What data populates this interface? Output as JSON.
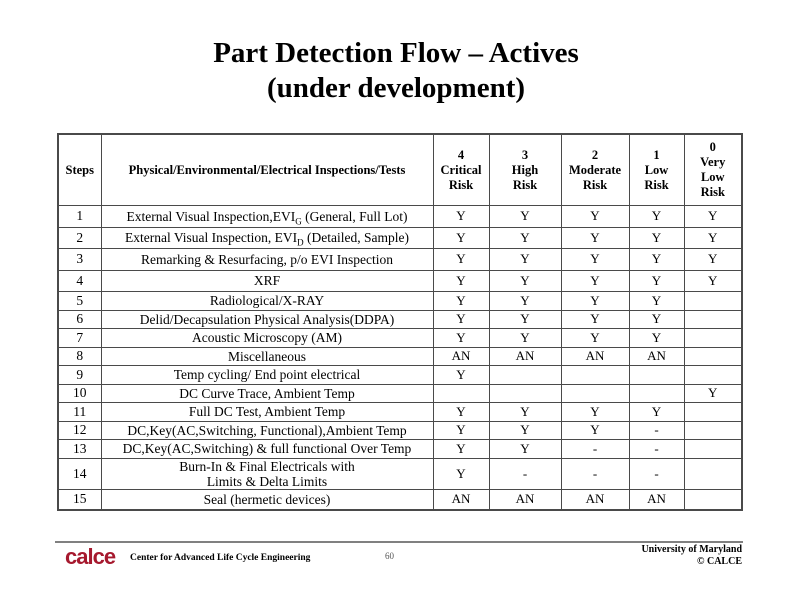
{
  "title": {
    "line1": "Part Detection Flow – Actives",
    "line2": "(under development)"
  },
  "table": {
    "headers": [
      "Steps",
      "Physical/Environmental/Electrical Inspections/Tests",
      "4\nCritical\nRisk",
      "3\nHigh\nRisk",
      "2\nModerate\nRisk",
      "1\nLow\nRisk",
      "0\nVery\nLow\nRisk"
    ],
    "rows": [
      {
        "step": "1",
        "test": "External Visual Inspection,EVI",
        "sub": "G",
        "test_after": " (General, Full Lot)",
        "values": [
          "Y",
          "Y",
          "Y",
          "Y",
          "Y"
        ]
      },
      {
        "step": "2",
        "test": "External Visual Inspection, EVI",
        "sub": "D",
        "test_after": " (Detailed, Sample)",
        "values": [
          "Y",
          "Y",
          "Y",
          "Y",
          "Y"
        ]
      },
      {
        "step": "3",
        "test": "Remarking & Resurfacing, p/o EVI Inspection",
        "values": [
          "Y",
          "Y",
          "Y",
          "Y",
          "Y"
        ]
      },
      {
        "step": "4",
        "test": "XRF",
        "values": [
          "Y",
          "Y",
          "Y",
          "Y",
          "Y"
        ]
      },
      {
        "step": "5",
        "test": "Radiological/X-RAY",
        "values": [
          "Y",
          "Y",
          "Y",
          "Y",
          ""
        ]
      },
      {
        "step": "6",
        "test": "Delid/Decapsulation Physical Analysis(DDPA)",
        "values": [
          "Y",
          "Y",
          "Y",
          "Y",
          ""
        ]
      },
      {
        "step": "7",
        "test": "Acoustic Microscopy (AM)",
        "values": [
          "Y",
          "Y",
          "Y",
          "Y",
          ""
        ]
      },
      {
        "step": "8",
        "test": "Miscellaneous",
        "values": [
          "AN",
          "AN",
          "AN",
          "AN",
          ""
        ]
      },
      {
        "step": "9",
        "test": "Temp cycling/ End point electrical",
        "values": [
          "Y",
          "",
          "",
          "",
          ""
        ]
      },
      {
        "step": "10",
        "test": "DC Curve Trace, Ambient Temp",
        "values": [
          "",
          "",
          "",
          "",
          "Y"
        ]
      },
      {
        "step": "11",
        "test": "Full DC Test, Ambient Temp",
        "values": [
          "Y",
          "Y",
          "Y",
          "Y",
          ""
        ]
      },
      {
        "step": "12",
        "test": "DC,Key(AC,Switching, Functional),Ambient Temp",
        "values": [
          "Y",
          "Y",
          "Y",
          "-",
          ""
        ]
      },
      {
        "step": "13",
        "test": "DC,Key(AC,Switching) & full functional Over Temp",
        "values": [
          "Y",
          "Y",
          "-",
          "-",
          ""
        ]
      },
      {
        "step": "14",
        "test": "Burn-In & Final Electricals with\nLimits & Delta Limits",
        "values": [
          "Y",
          "-",
          "-",
          "-",
          ""
        ]
      },
      {
        "step": "15",
        "test": "Seal (hermetic devices)",
        "values": [
          "AN",
          "AN",
          "AN",
          "AN",
          ""
        ]
      }
    ]
  },
  "footer": {
    "logo_text": "calce",
    "org": "Center for Advanced Life Cycle Engineering",
    "page_number": "60",
    "right_line1": "University of Maryland",
    "right_line2": "© CALCE"
  },
  "colors": {
    "brand_red": "#a6192e",
    "table_border": "#4a4a4a",
    "footer_rule": "#808080"
  }
}
